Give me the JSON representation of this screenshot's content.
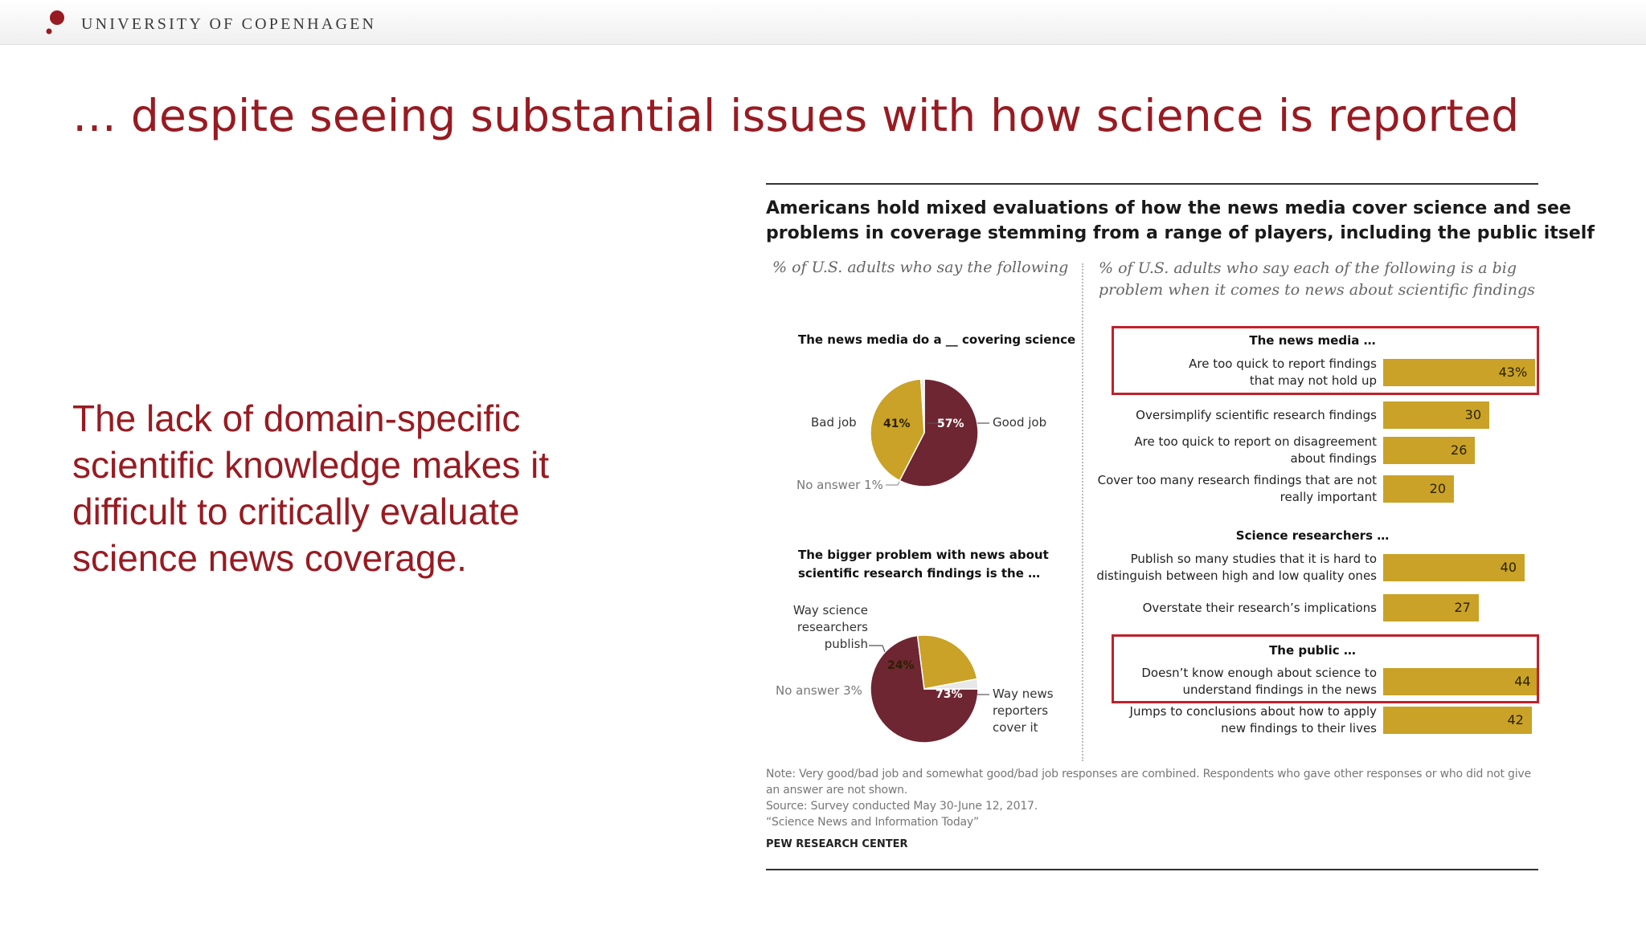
{
  "header": {
    "university_name": "UNIVERSITY OF COPENHAGEN",
    "accent_color": "#981b22"
  },
  "slide": {
    "title": "… despite seeing substantial issues with how science is reported",
    "body_text": "The lack of domain-specific scientific knowledge makes it difficult to critically evaluate science news coverage."
  },
  "figure": {
    "title_lines": [
      "Americans hold mixed evaluations of how the news media cover science and see",
      "problems in coverage stemming from a range of players, including the public itself"
    ],
    "left_subtitle": "% of U.S. adults who say the following",
    "right_subtitle_lines": [
      "% of U.S. adults who say each of the following is a big",
      "problem when it comes to news about scientific findings"
    ],
    "notes": [
      "Note: Very good/bad job and somewhat good/bad job responses are combined. Respondents who gave other responses or who did not give",
      "an answer are not shown.",
      "Source: Survey conducted May 30-June 12, 2017.",
      "“Science News and Information Today”"
    ],
    "source_org": "PEW RESEARCH CENTER"
  },
  "chart_data": [
    {
      "type": "pie",
      "title": "The news media do a __ covering science",
      "slices": [
        {
          "label": "Good job",
          "value": 57,
          "value_label": "57%",
          "color": "#6e2632"
        },
        {
          "label": "Bad job",
          "value": 41,
          "value_label": "41%",
          "color": "#c9a227"
        },
        {
          "label": "No answer 1%",
          "value": 1,
          "color": "#e8e8e8"
        }
      ]
    },
    {
      "type": "pie",
      "title_lines": [
        "The bigger problem with news about",
        "scientific research findings is the …"
      ],
      "slices": [
        {
          "label_lines": [
            "Way news",
            "reporters",
            "cover it"
          ],
          "value": 73,
          "value_label": "73%",
          "color": "#6e2632"
        },
        {
          "label_lines": [
            "Way science",
            "researchers",
            "publish"
          ],
          "value": 24,
          "value_label": "24%",
          "color": "#c9a227"
        },
        {
          "label": "No answer 3%",
          "value": 3,
          "color": "#e8e8e8"
        }
      ]
    },
    {
      "type": "bar",
      "orientation": "horizontal",
      "bar_color": "#c9a227",
      "highlight_color": "#c0212b",
      "groups": [
        {
          "name": "The news media …",
          "items": [
            {
              "label_lines": [
                "Are too quick to report findings",
                "that may not hold up"
              ],
              "value": 43,
              "value_label": "43%",
              "highlighted": true
            },
            {
              "label_lines": [
                "Oversimplify scientific research findings"
              ],
              "value": 30,
              "value_label": "30"
            },
            {
              "label_lines": [
                "Are too quick to report on disagreement",
                "about findings"
              ],
              "value": 26,
              "value_label": "26"
            },
            {
              "label_lines": [
                "Cover too many research findings that are not",
                "really important"
              ],
              "value": 20,
              "value_label": "20"
            }
          ]
        },
        {
          "name": "Science researchers …",
          "items": [
            {
              "label_lines": [
                "Publish so many studies that it is hard to",
                "distinguish between high and low quality ones"
              ],
              "value": 40,
              "value_label": "40"
            },
            {
              "label_lines": [
                "Overstate their research’s implications"
              ],
              "value": 27,
              "value_label": "27"
            }
          ]
        },
        {
          "name": "The public …",
          "highlighted": true,
          "items": [
            {
              "label_lines": [
                "Doesn’t know enough about science to",
                "understand findings in the news"
              ],
              "value": 44,
              "value_label": "44",
              "highlighted": true
            },
            {
              "label_lines": [
                "Jumps to conclusions about how to apply",
                "new findings to their lives"
              ],
              "value": 42,
              "value_label": "42"
            }
          ]
        }
      ]
    }
  ]
}
